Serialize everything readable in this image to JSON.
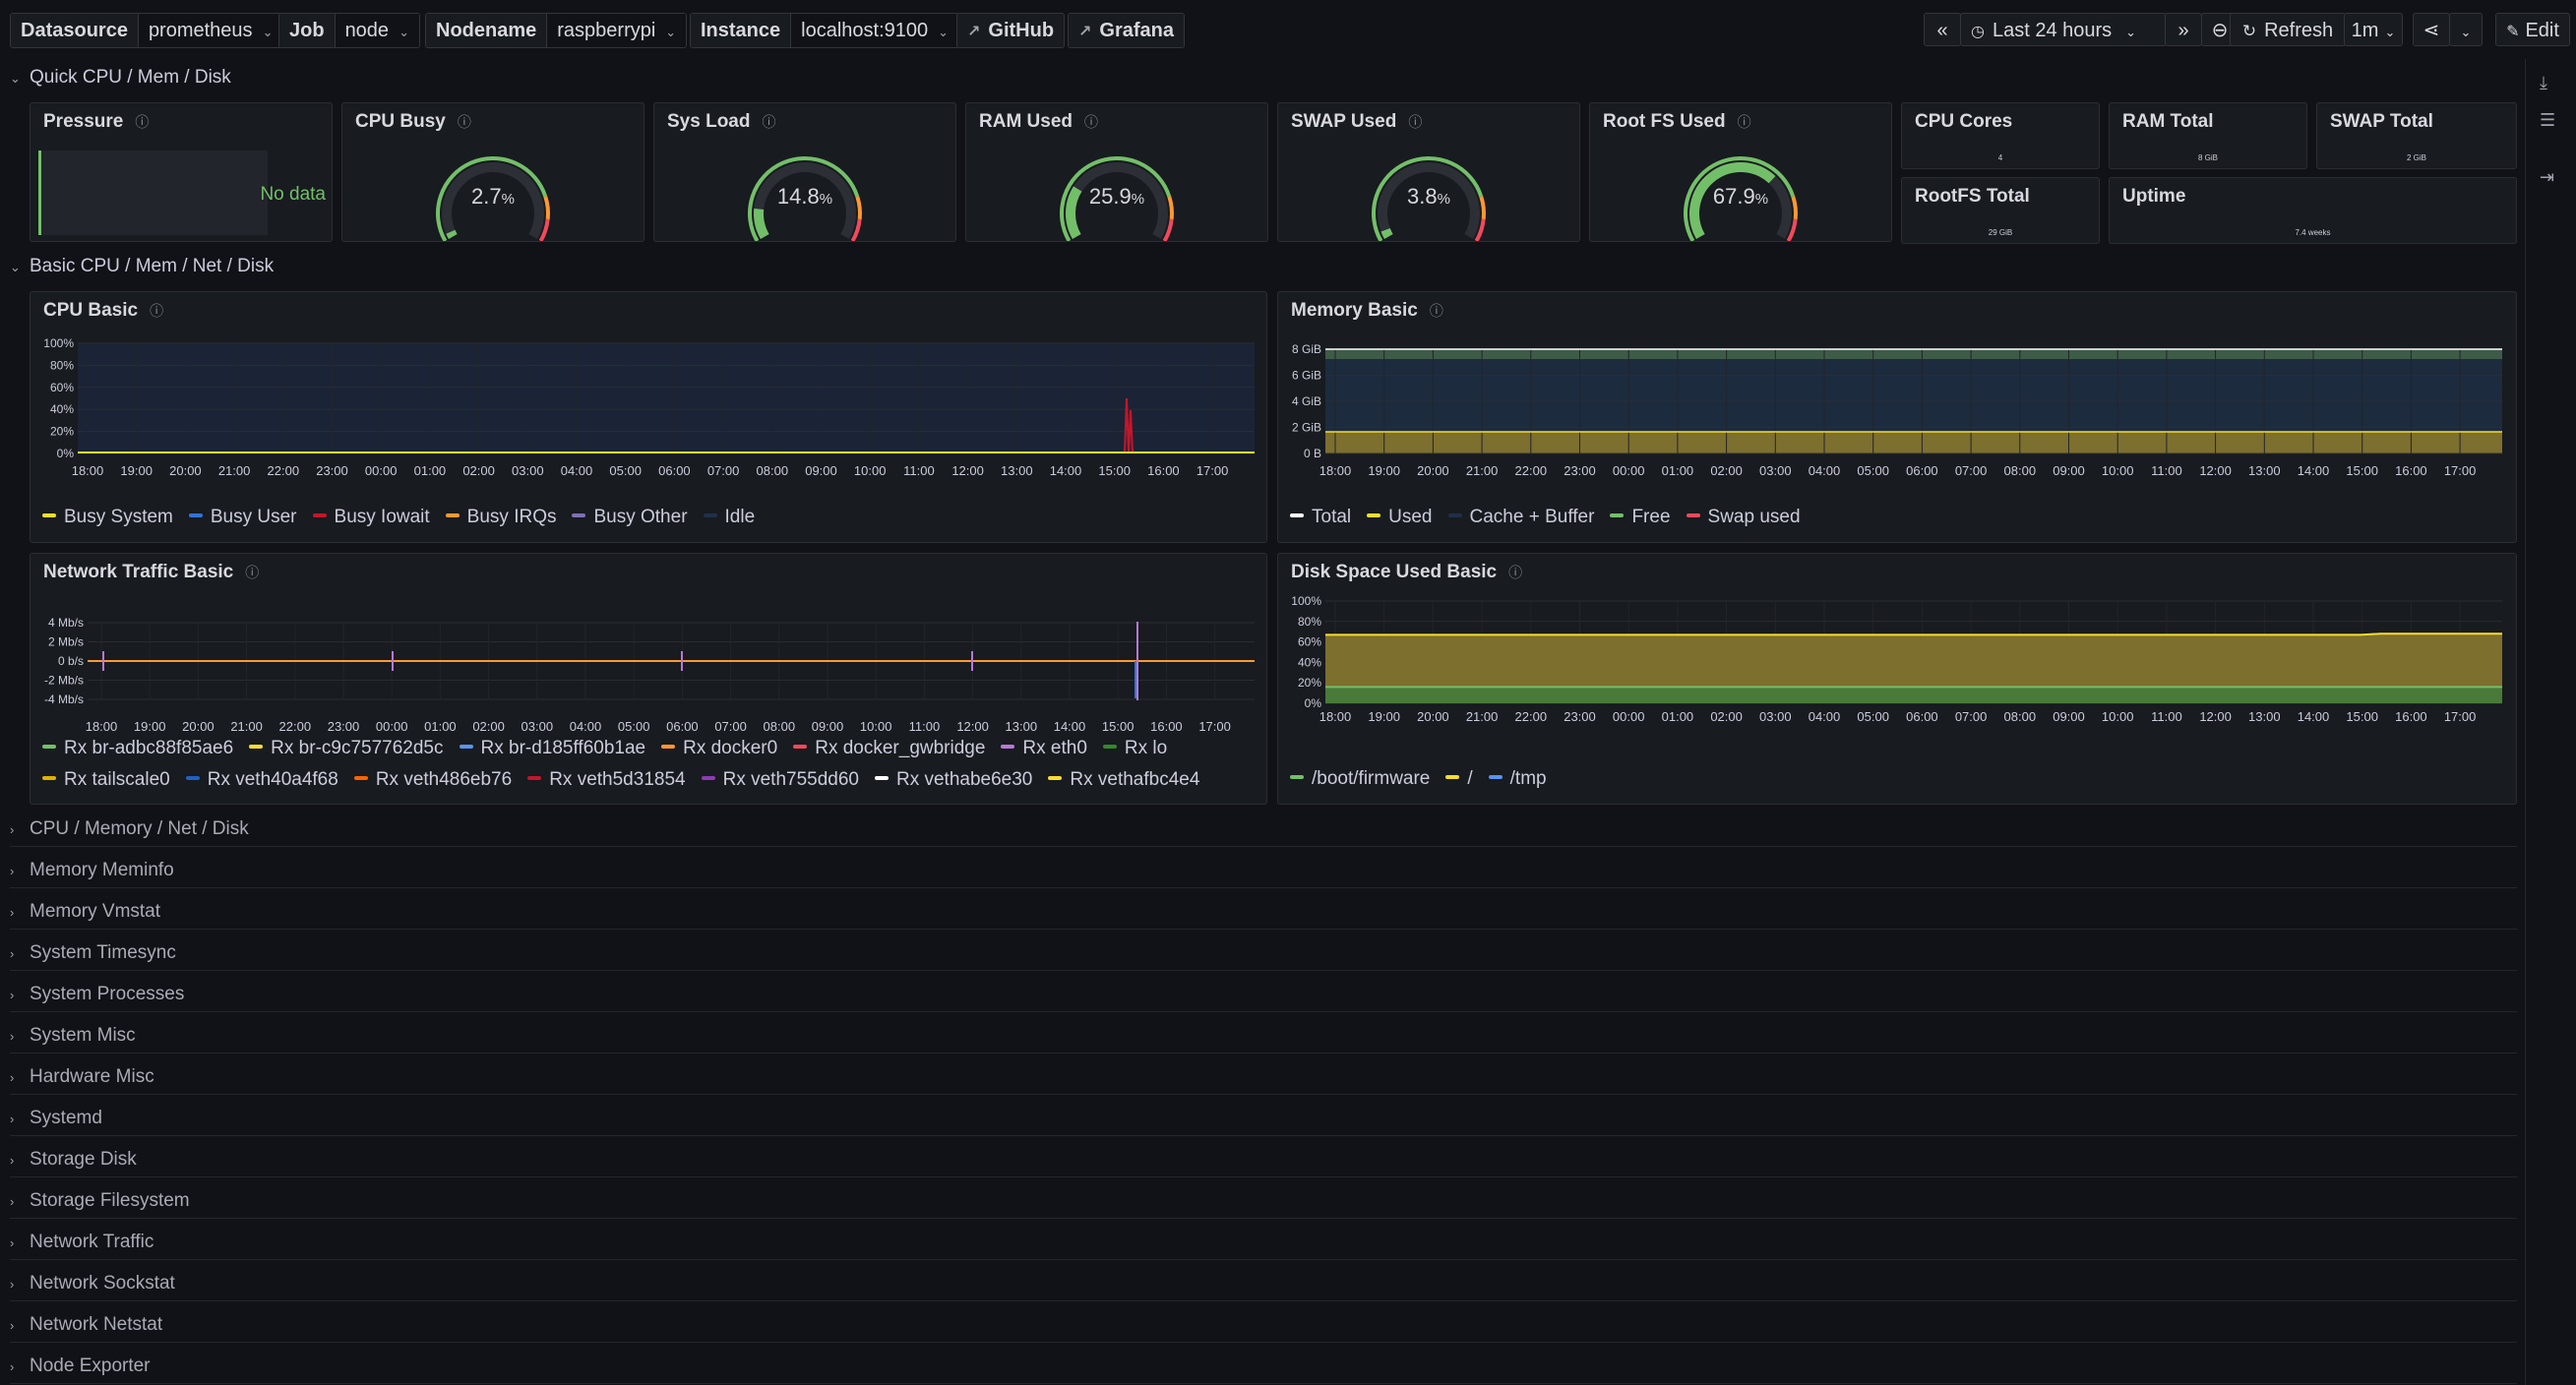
{
  "variables": [
    {
      "label": "Datasource",
      "value": "prometheus"
    },
    {
      "label": "Job",
      "value": "node"
    },
    {
      "label": "Nodename",
      "value": "raspberrypi"
    },
    {
      "label": "Instance",
      "value": "localhost:9100"
    }
  ],
  "links": [
    "GitHub",
    "Grafana"
  ],
  "toolbar": {
    "time_range": "Last 24 hours",
    "refresh_label": "Refresh",
    "refresh_interval": "1m",
    "edit_label": "Edit",
    "back_glyph": "«",
    "fwd_glyph": "»"
  },
  "rows": {
    "quick": "Quick CPU / Mem / Disk",
    "basic": "Basic CPU / Mem / Net / Disk",
    "collapsed": [
      "CPU / Memory / Net / Disk",
      "Memory Meminfo",
      "Memory Vmstat",
      "System Timesync",
      "System Processes",
      "System Misc",
      "Hardware Misc",
      "Systemd",
      "Storage Disk",
      "Storage Filesystem",
      "Network Traffic",
      "Network Sockstat",
      "Network Netstat",
      "Node Exporter"
    ]
  },
  "pressure": {
    "title": "Pressure",
    "no_data": "No data"
  },
  "gauges": [
    {
      "title": "CPU Busy",
      "value": "2.7",
      "unit": "%",
      "percent": 2.7
    },
    {
      "title": "Sys Load",
      "value": "14.8",
      "unit": "%",
      "percent": 14.8
    },
    {
      "title": "RAM Used",
      "value": "25.9",
      "unit": "%",
      "percent": 25.9
    },
    {
      "title": "SWAP Used",
      "value": "3.8",
      "unit": "%",
      "percent": 3.8
    },
    {
      "title": "Root FS Used",
      "value": "67.9",
      "unit": "%",
      "percent": 67.9
    }
  ],
  "stats": [
    {
      "title": "CPU Cores",
      "value": "4"
    },
    {
      "title": "RAM Total",
      "value": "8 GiB"
    },
    {
      "title": "SWAP Total",
      "value": "2 GiB"
    },
    {
      "title": "RootFS Total",
      "value": "29 GiB"
    },
    {
      "title": "Uptime",
      "value": "7.4 weeks"
    }
  ],
  "time_ticks": [
    "18:00",
    "19:00",
    "20:00",
    "21:00",
    "22:00",
    "23:00",
    "00:00",
    "01:00",
    "02:00",
    "03:00",
    "04:00",
    "05:00",
    "06:00",
    "07:00",
    "08:00",
    "09:00",
    "10:00",
    "11:00",
    "12:00",
    "13:00",
    "14:00",
    "15:00",
    "16:00",
    "17:00"
  ],
  "cpu_basic": {
    "title": "CPU Basic",
    "y_ticks": [
      "100%",
      "80%",
      "60%",
      "40%",
      "20%",
      "0%"
    ],
    "legend": [
      {
        "name": "Busy System",
        "color": "#fade2a"
      },
      {
        "name": "Busy User",
        "color": "#3274d9"
      },
      {
        "name": "Busy Iowait",
        "color": "#c4162a"
      },
      {
        "name": "Busy IRQs",
        "color": "#ff9830"
      },
      {
        "name": "Busy Other",
        "color": "#806eb7"
      },
      {
        "name": "Idle",
        "color": "#1f3048"
      }
    ]
  },
  "memory_basic": {
    "title": "Memory Basic",
    "y_ticks": [
      "8 GiB",
      "6 GiB",
      "4 GiB",
      "2 GiB",
      "0 B"
    ],
    "legend": [
      {
        "name": "Total",
        "color": "#ffffff"
      },
      {
        "name": "Used",
        "color": "#fade2a"
      },
      {
        "name": "Cache + Buffer",
        "color": "#1f3048"
      },
      {
        "name": "Free",
        "color": "#73bf69"
      },
      {
        "name": "Swap used",
        "color": "#f2495c"
      }
    ]
  },
  "network_basic": {
    "title": "Network Traffic Basic",
    "y_ticks": [
      "4 Mb/s",
      "2 Mb/s",
      "0 b/s",
      "-2 Mb/s",
      "-4 Mb/s"
    ],
    "legend_rows": [
      [
        {
          "name": "Rx br-adbc88f85ae6",
          "color": "#73bf69"
        },
        {
          "name": "Rx br-c9c757762d5c",
          "color": "#fade2a"
        },
        {
          "name": "Rx br-d185ff60b1ae",
          "color": "#5794f2"
        },
        {
          "name": "Rx docker0",
          "color": "#ff9830"
        },
        {
          "name": "Rx docker_gwbridge",
          "color": "#f2495c"
        },
        {
          "name": "Rx eth0",
          "color": "#b877d9"
        },
        {
          "name": "Rx lo",
          "color": "#37872d"
        }
      ],
      [
        {
          "name": "Rx tailscale0",
          "color": "#e0b400"
        },
        {
          "name": "Rx veth40a4f68",
          "color": "#1f60c4"
        },
        {
          "name": "Rx veth486eb76",
          "color": "#fa6400"
        },
        {
          "name": "Rx veth5d31854",
          "color": "#c4162a"
        },
        {
          "name": "Rx veth755dd60",
          "color": "#8f3bb8"
        },
        {
          "name": "Rx vethabe6e30",
          "color": "#ffffff"
        },
        {
          "name": "Rx vethafbc4e4",
          "color": "#fade2a"
        }
      ]
    ]
  },
  "disk_basic": {
    "title": "Disk Space Used Basic",
    "y_ticks": [
      "100%",
      "80%",
      "60%",
      "40%",
      "20%",
      "0%"
    ],
    "legend": [
      {
        "name": "/boot/firmware",
        "color": "#73bf69"
      },
      {
        "name": "/",
        "color": "#fade2a"
      },
      {
        "name": "/tmp",
        "color": "#5794f2"
      }
    ]
  }
}
